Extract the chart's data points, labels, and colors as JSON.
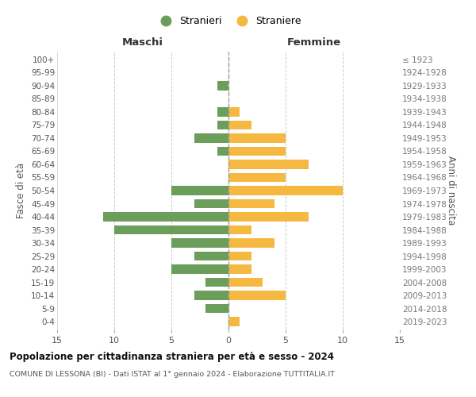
{
  "age_groups": [
    "0-4",
    "5-9",
    "10-14",
    "15-19",
    "20-24",
    "25-29",
    "30-34",
    "35-39",
    "40-44",
    "45-49",
    "50-54",
    "55-59",
    "60-64",
    "65-69",
    "70-74",
    "75-79",
    "80-84",
    "85-89",
    "90-94",
    "95-99",
    "100+"
  ],
  "birth_years": [
    "2019-2023",
    "2014-2018",
    "2009-2013",
    "2004-2008",
    "1999-2003",
    "1994-1998",
    "1989-1993",
    "1984-1988",
    "1979-1983",
    "1974-1978",
    "1969-1973",
    "1964-1968",
    "1959-1963",
    "1954-1958",
    "1949-1953",
    "1944-1948",
    "1939-1943",
    "1934-1938",
    "1929-1933",
    "1924-1928",
    "≤ 1923"
  ],
  "males": [
    0,
    2,
    3,
    2,
    5,
    3,
    5,
    10,
    11,
    3,
    5,
    0,
    0,
    1,
    3,
    1,
    1,
    0,
    1,
    0,
    0
  ],
  "females": [
    1,
    0,
    5,
    3,
    2,
    2,
    4,
    2,
    7,
    4,
    10,
    5,
    7,
    5,
    5,
    2,
    1,
    0,
    0,
    0,
    0
  ],
  "male_color": "#6a9e5a",
  "female_color": "#f5b942",
  "title": "Popolazione per cittadinanza straniera per età e sesso - 2024",
  "subtitle": "COMUNE DI LESSONA (BI) - Dati ISTAT al 1° gennaio 2024 - Elaborazione TUTTITALIA.IT",
  "left_header": "Maschi",
  "right_header": "Femmine",
  "ylabel": "Fasce di età",
  "right_ylabel": "Anni di nascita",
  "legend_male": "Stranieri",
  "legend_female": "Straniere",
  "xlim": 15,
  "background_color": "#ffffff"
}
